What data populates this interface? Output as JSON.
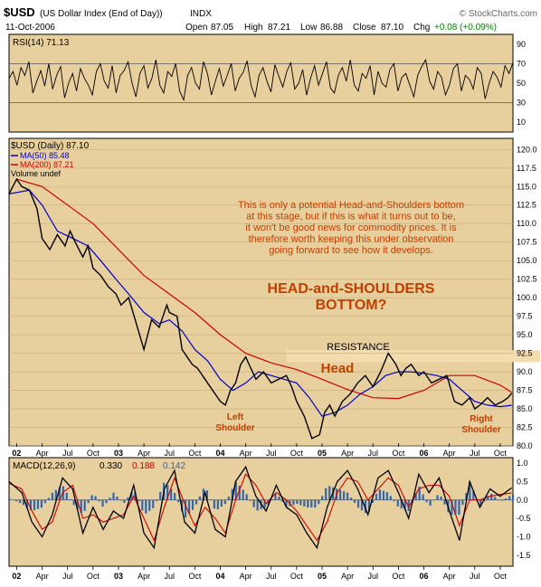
{
  "header": {
    "symbol": "$USD",
    "name": "(US Dollar Index (End of Day))",
    "exchange": "INDX",
    "watermark": "© StockCharts.com",
    "date": "11-Oct-2006",
    "open_label": "Open",
    "open": "87.05",
    "high_label": "High",
    "high": "87.21",
    "low_label": "Low",
    "low": "86.88",
    "close_label": "Close",
    "close": "87.10",
    "chg_label": "Chg",
    "chg": "+0.08 (+0.09%)"
  },
  "colors": {
    "panel_bg": "#e8cf9e",
    "price": "#000000",
    "ma50": "#0000cc",
    "ma200": "#cc0000",
    "annotation": "#c04000",
    "macd_hist": "#3366aa",
    "resistance_band": "#f3dcae",
    "positive": "#00a000"
  },
  "chart_data": [
    {
      "type": "line",
      "name": "rsi_panel",
      "legend": "RSI(14) 71.13",
      "y_ticks": [
        10,
        30,
        50,
        70,
        90
      ],
      "ylim": [
        0,
        100
      ],
      "reference_lines": [
        30,
        70
      ],
      "series": [
        {
          "values": [
            55,
            62,
            48,
            66,
            58,
            72,
            40,
            52,
            63,
            47,
            70,
            44,
            58,
            67,
            35,
            50,
            60,
            42,
            65,
            55,
            48,
            38,
            62,
            70,
            52,
            45,
            68,
            40,
            58,
            63,
            72,
            50,
            36,
            60,
            68,
            45,
            55,
            74,
            48,
            40,
            62,
            57,
            70,
            42,
            33,
            58,
            66,
            50,
            44,
            72,
            60,
            38,
            52,
            65,
            47,
            58,
            70,
            42,
            55,
            61,
            73,
            48,
            36,
            58,
            66,
            52,
            41,
            69,
            57,
            46,
            62,
            71,
            44,
            50,
            64,
            38,
            55,
            68,
            48,
            60,
            72,
            45,
            40,
            58,
            66,
            52,
            74,
            48,
            42,
            60,
            55,
            68,
            38,
            62,
            50,
            46,
            64,
            70,
            42,
            56,
            60,
            48,
            36,
            58,
            67,
            74,
            52,
            44,
            62,
            56,
            38,
            48,
            65,
            70,
            42,
            58,
            54,
            44,
            66,
            60,
            34,
            50,
            62,
            56,
            46,
            68,
            60,
            71
          ]
        }
      ]
    },
    {
      "type": "line",
      "name": "price_panel",
      "legend_price": "$USD (Daily) 87.10",
      "legend_ma50": "MA(50) 85.48",
      "legend_ma200": "MA(200) 87.21",
      "legend_volume": "Volume undef",
      "y_ticks": [
        80.0,
        82.5,
        85.0,
        87.5,
        90.0,
        92.5,
        95.0,
        97.5,
        100.0,
        102.5,
        105.0,
        107.5,
        110.0,
        112.5,
        115.0,
        117.5,
        120.0
      ],
      "ylim": [
        80,
        121.5
      ],
      "x_ticks": [
        "02",
        "Apr",
        "Jul",
        "Oct",
        "03",
        "Apr",
        "Jul",
        "Oct",
        "04",
        "Apr",
        "Jul",
        "Oct",
        "05",
        "Apr",
        "Jul",
        "Oct",
        "06",
        "Apr",
        "Jul",
        "Oct"
      ],
      "x_tick_pos": [
        0,
        1,
        2,
        3,
        4,
        5,
        6,
        7,
        8,
        9,
        10,
        11,
        12,
        13,
        14,
        15,
        16,
        17,
        18,
        19
      ],
      "x_range": [
        -0.3,
        19.5
      ],
      "price": {
        "x": [
          -0.3,
          0.0,
          0.2,
          0.5,
          0.8,
          1.0,
          1.3,
          1.6,
          1.9,
          2.1,
          2.3,
          2.6,
          2.8,
          3.0,
          3.3,
          3.6,
          3.9,
          4.1,
          4.4,
          4.7,
          5.0,
          5.3,
          5.6,
          5.9,
          6.0,
          6.3,
          6.5,
          6.7,
          6.9,
          7.1,
          7.4,
          7.7,
          8.0,
          8.2,
          8.4,
          8.6,
          8.8,
          9.0,
          9.2,
          9.4,
          9.7,
          10.0,
          10.3,
          10.6,
          10.8,
          11.0,
          11.3,
          11.6,
          11.9,
          12.1,
          12.3,
          12.5,
          12.8,
          13.1,
          13.4,
          13.7,
          14.0,
          14.3,
          14.6,
          14.9,
          15.1,
          15.3,
          15.5,
          15.8,
          16.0,
          16.3,
          16.6,
          16.9,
          17.2,
          17.5,
          17.8,
          18.0,
          18.2,
          18.5,
          18.8,
          19.1,
          19.3,
          19.45
        ],
        "y": [
          114.0,
          116.0,
          115.0,
          114.5,
          112.0,
          108.0,
          106.5,
          108.5,
          107.0,
          109.0,
          107.5,
          105.5,
          107.0,
          104.0,
          103.0,
          101.5,
          100.5,
          99.0,
          100.0,
          96.5,
          93.0,
          97.0,
          96.0,
          99.0,
          98.0,
          97.5,
          93.0,
          92.0,
          91.0,
          90.5,
          89.0,
          87.5,
          86.0,
          85.5,
          87.5,
          88.5,
          91.0,
          92.0,
          90.5,
          89.0,
          90.0,
          88.5,
          89.0,
          89.5,
          88.0,
          86.0,
          84.0,
          81.0,
          81.5,
          84.5,
          85.5,
          84.0,
          86.0,
          87.0,
          88.5,
          89.5,
          88.0,
          90.0,
          92.5,
          91.0,
          89.5,
          90.5,
          91.0,
          89.5,
          90.0,
          88.5,
          89.0,
          89.5,
          86.0,
          85.5,
          86.5,
          85.0,
          85.5,
          86.5,
          85.5,
          86.0,
          86.5,
          87.1
        ]
      },
      "ma50": {
        "x": [
          -0.3,
          0.5,
          1.0,
          1.6,
          2.2,
          2.8,
          3.3,
          3.9,
          4.4,
          5.0,
          5.6,
          6.0,
          6.5,
          7.0,
          7.5,
          8.0,
          8.5,
          9.0,
          9.5,
          10.0,
          10.5,
          11.0,
          11.5,
          12.0,
          12.5,
          13.0,
          13.5,
          14.0,
          14.5,
          15.0,
          15.5,
          16.0,
          16.5,
          17.0,
          17.5,
          18.0,
          18.5,
          19.0,
          19.45
        ],
        "y": [
          114.0,
          114.5,
          112.5,
          109.0,
          108.0,
          107.0,
          105.0,
          102.5,
          100.5,
          98.0,
          96.5,
          97.0,
          95.5,
          93.0,
          91.5,
          89.0,
          87.5,
          88.5,
          90.0,
          89.5,
          89.0,
          88.5,
          86.5,
          84.0,
          84.5,
          85.5,
          87.0,
          88.0,
          89.5,
          90.0,
          90.0,
          89.8,
          89.5,
          89.0,
          87.5,
          86.0,
          85.5,
          85.3,
          85.48
        ]
      },
      "ma200": {
        "x": [
          0.0,
          1.0,
          2.0,
          3.0,
          4.0,
          5.0,
          6.0,
          7.0,
          8.0,
          9.0,
          10.0,
          11.0,
          12.0,
          13.0,
          14.0,
          15.0,
          16.0,
          17.0,
          18.0,
          19.0,
          19.45
        ],
        "y": [
          116.0,
          115.0,
          112.5,
          110.0,
          106.5,
          103.0,
          100.5,
          98.0,
          95.0,
          92.5,
          91.2,
          90.3,
          89.0,
          87.6,
          86.5,
          86.4,
          87.5,
          89.5,
          89.5,
          88.2,
          87.21
        ]
      },
      "resistance": {
        "low": 91.3,
        "high": 92.9,
        "label": "RESISTANCE"
      },
      "annotations": [
        {
          "key": "comment",
          "text": [
            "This is only a potential Head-and-Shoulders bottom",
            "at this stage, but if this is what it turns out to be,",
            "it won't be good news for commodity prices. It is",
            "therefore worth keeping this under observation",
            "going forward to see how it develops."
          ]
        },
        {
          "key": "pattern_title",
          "text": [
            "HEAD-and-SHOULDERS",
            "BOTTOM?"
          ]
        },
        {
          "key": "head",
          "text": [
            "Head"
          ]
        },
        {
          "key": "left_shoulder",
          "text": [
            "Left",
            "Shoulder"
          ]
        },
        {
          "key": "right_shoulder",
          "text": [
            "Right",
            "Shoulder"
          ]
        }
      ]
    },
    {
      "type": "line",
      "name": "macd_panel",
      "legend_label": "MACD(12,26,9)",
      "legend_macd": "0.330",
      "legend_signal": "0.188",
      "legend_hist": "0.142",
      "y_ticks": [
        1.0,
        0.5,
        0.0,
        -0.5,
        -1.0,
        -1.5
      ],
      "ylim": [
        -1.8,
        1.15
      ],
      "x_ticks": [
        "02",
        "Apr",
        "Jul",
        "Oct",
        "03",
        "Apr",
        "Jul",
        "Oct",
        "04",
        "Apr",
        "Jul",
        "Oct",
        "05",
        "Apr",
        "Jul",
        "Oct",
        "06",
        "Apr",
        "Jul",
        "Oct"
      ],
      "x_tick_pos": [
        0,
        1,
        2,
        3,
        4,
        5,
        6,
        7,
        8,
        9,
        10,
        11,
        12,
        13,
        14,
        15,
        16,
        17,
        18,
        19
      ],
      "x_range": [
        -0.3,
        19.5
      ],
      "macd": {
        "x": [
          -0.3,
          0.2,
          0.6,
          1.0,
          1.4,
          1.8,
          2.2,
          2.6,
          3.0,
          3.4,
          3.8,
          4.2,
          4.6,
          5.0,
          5.4,
          5.8,
          6.2,
          6.6,
          7.0,
          7.4,
          7.8,
          8.2,
          8.6,
          9.0,
          9.4,
          9.8,
          10.2,
          10.6,
          11.0,
          11.4,
          11.8,
          12.2,
          12.6,
          13.0,
          13.4,
          13.8,
          14.2,
          14.6,
          15.0,
          15.4,
          15.8,
          16.2,
          16.6,
          17.0,
          17.4,
          17.8,
          18.2,
          18.6,
          19.0,
          19.45
        ],
        "y": [
          0.5,
          0.2,
          -0.6,
          -1.0,
          -0.4,
          0.6,
          0.3,
          -0.9,
          -0.2,
          -0.8,
          -0.3,
          -0.5,
          0.4,
          -0.9,
          -1.3,
          0.3,
          0.8,
          -0.6,
          -0.9,
          0.2,
          -0.8,
          -1.0,
          0.5,
          0.9,
          0.1,
          -0.3,
          0.4,
          -0.2,
          -0.4,
          -0.9,
          -1.3,
          -0.2,
          0.5,
          0.8,
          0.3,
          -0.4,
          0.6,
          0.8,
          0.2,
          -0.5,
          0.7,
          0.2,
          0.6,
          -0.3,
          -1.1,
          0.5,
          -0.2,
          0.3,
          0.1,
          0.33
        ]
      },
      "signal": {
        "x": [
          -0.3,
          0.2,
          0.6,
          1.0,
          1.4,
          1.8,
          2.2,
          2.6,
          3.0,
          3.4,
          3.8,
          4.2,
          4.6,
          5.0,
          5.4,
          5.8,
          6.2,
          6.6,
          7.0,
          7.4,
          7.8,
          8.2,
          8.6,
          9.0,
          9.4,
          9.8,
          10.2,
          10.6,
          11.0,
          11.4,
          11.8,
          12.2,
          12.6,
          13.0,
          13.4,
          13.8,
          14.2,
          14.6,
          15.0,
          15.4,
          15.8,
          16.2,
          16.6,
          17.0,
          17.4,
          17.8,
          18.2,
          18.6,
          19.0,
          19.45
        ],
        "y": [
          0.45,
          0.3,
          -0.3,
          -0.8,
          -0.6,
          0.2,
          0.4,
          -0.5,
          -0.4,
          -0.6,
          -0.5,
          -0.4,
          0.1,
          -0.5,
          -1.1,
          -0.2,
          0.6,
          -0.1,
          -0.7,
          -0.2,
          -0.5,
          -0.9,
          0.0,
          0.7,
          0.4,
          -0.1,
          0.2,
          0.0,
          -0.3,
          -0.7,
          -1.1,
          -0.6,
          0.2,
          0.6,
          0.5,
          0.0,
          0.3,
          0.6,
          0.4,
          -0.2,
          0.3,
          0.4,
          0.4,
          0.1,
          -0.7,
          0.0,
          0.0,
          0.1,
          0.15,
          0.188
        ]
      }
    }
  ]
}
